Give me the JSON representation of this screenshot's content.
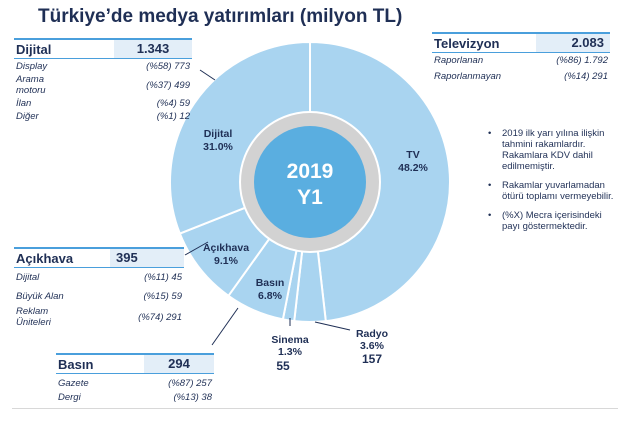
{
  "title": "Türkiye’de medya yatırımları (milyon TL)",
  "center": {
    "line1": "2019",
    "line2": "Y1"
  },
  "colors": {
    "slice": "#a9d4f0",
    "accent": "#4a9fdc",
    "center": "#5aaee0",
    "ring": "#d2d2d2",
    "text": "#1f2f55"
  },
  "chart_data": {
    "type": "pie",
    "title": "Türkiye’de medya yatırımları (milyon TL)",
    "slices": [
      {
        "label": "TV",
        "percent": "48.2%",
        "value_text": "",
        "pct": 48.2
      },
      {
        "label": "Radyo",
        "percent": "3.6%",
        "value_text": "157",
        "pct": 3.6
      },
      {
        "label": "Sinema",
        "percent": "1.3%",
        "value_text": "55",
        "pct": 1.3
      },
      {
        "label": "Basın",
        "percent": "6.8%",
        "value_text": "",
        "pct": 6.8
      },
      {
        "label": "Açıkhava",
        "percent": "9.1%",
        "value_text": "",
        "pct": 9.1
      },
      {
        "label": "Dijital",
        "percent": "31.0%",
        "value_text": "",
        "pct": 31.0
      }
    ]
  },
  "dijital": {
    "name": "Dijital",
    "total": "1.343",
    "rows": [
      {
        "label": "Display",
        "value": "(%58) 773"
      },
      {
        "label": "Arama motoru",
        "value": "(%37) 499"
      },
      {
        "label": "İlan",
        "value": "(%4) 59"
      },
      {
        "label": "Diğer",
        "value": "(%1) 12"
      }
    ]
  },
  "televizyon": {
    "name": "Televizyon",
    "total": "2.083",
    "rows": [
      {
        "label": "Raporlanan",
        "value": "(%86) 1.792"
      },
      {
        "label": "Raporlanmayan",
        "value": "(%14) 291"
      }
    ]
  },
  "acikhava": {
    "name": "Açıkhava",
    "total": "395",
    "rows": [
      {
        "label": "Dijital",
        "value": "(%11) 45"
      },
      {
        "label": "Büyük Alan",
        "value": "(%15) 59"
      },
      {
        "label": "Reklam Üniteleri",
        "value": "(%74) 291"
      }
    ]
  },
  "basin": {
    "name": "Basın",
    "total": "294",
    "rows": [
      {
        "label": "Gazete",
        "value": "(%87) 257"
      },
      {
        "label": "Dergi",
        "value": "(%13) 38"
      }
    ]
  },
  "notes": [
    "2019 ilk yarı yılına ilişkin tahmini rakamlardır. Rakamlara KDV dahil edilmemiştir.",
    "Rakamlar yuvarlamadan ötürü toplamı vermeyebilir.",
    "(%X) Mecra içerisindeki payı göstermektedir."
  ]
}
